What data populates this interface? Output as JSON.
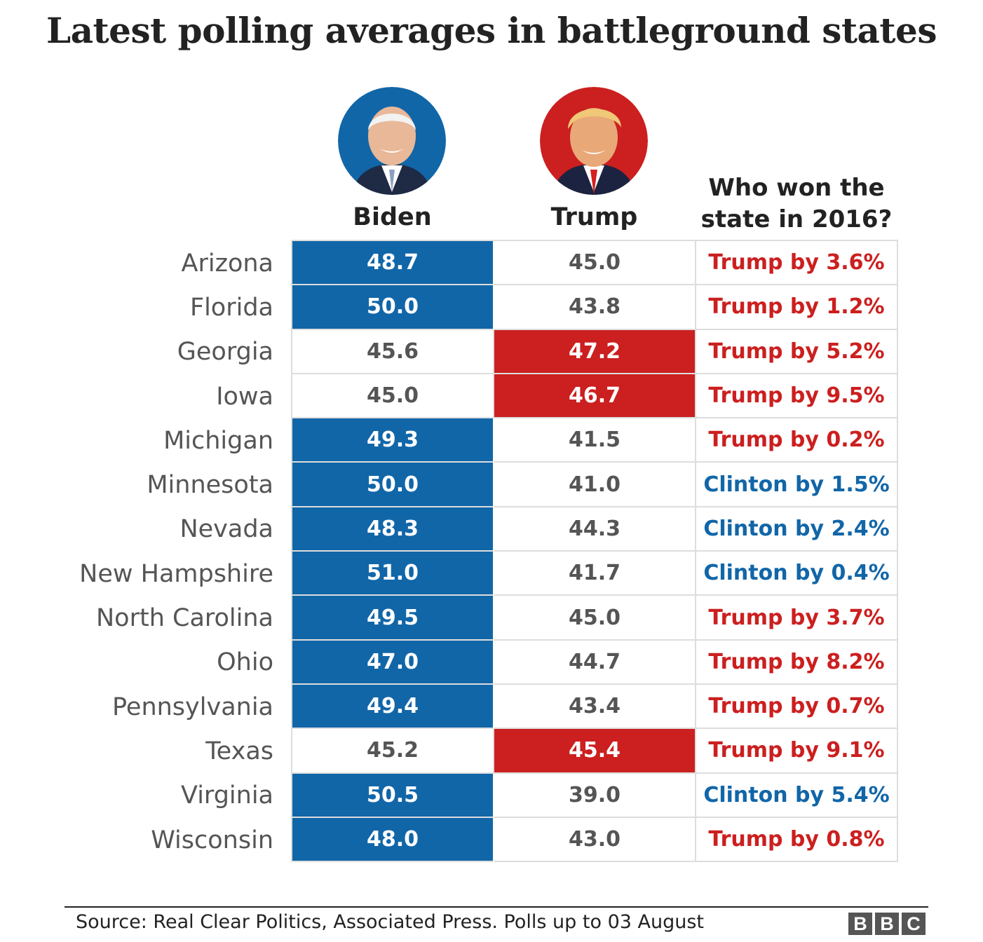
{
  "title": "Latest polling averages in battleground states",
  "columns": {
    "biden": "Biden",
    "trump": "Trump",
    "winner_line1": "Who won the",
    "winner_line2": "state in 2016?"
  },
  "colors": {
    "biden_blue": "#1166a8",
    "trump_red": "#cc1f1f",
    "grid": "#dddddd",
    "text_gray": "#555555"
  },
  "chart_data": {
    "type": "table",
    "title": "Latest polling averages in battleground states",
    "columns": [
      "Biden",
      "Trump",
      "Who won the state in 2016?"
    ],
    "rows": [
      {
        "state": "Arizona",
        "biden": "48.7",
        "trump": "45.0",
        "leader": "biden",
        "winner_2016": "Trump by 3.6%",
        "winner_party": "trump"
      },
      {
        "state": "Florida",
        "biden": "50.0",
        "trump": "43.8",
        "leader": "biden",
        "winner_2016": "Trump by 1.2%",
        "winner_party": "trump"
      },
      {
        "state": "Georgia",
        "biden": "45.6",
        "trump": "47.2",
        "leader": "trump",
        "winner_2016": "Trump by 5.2%",
        "winner_party": "trump"
      },
      {
        "state": "Iowa",
        "biden": "45.0",
        "trump": "46.7",
        "leader": "trump",
        "winner_2016": "Trump by 9.5%",
        "winner_party": "trump"
      },
      {
        "state": "Michigan",
        "biden": "49.3",
        "trump": "41.5",
        "leader": "biden",
        "winner_2016": "Trump by 0.2%",
        "winner_party": "trump"
      },
      {
        "state": "Minnesota",
        "biden": "50.0",
        "trump": "41.0",
        "leader": "biden",
        "winner_2016": "Clinton by 1.5%",
        "winner_party": "clinton"
      },
      {
        "state": "Nevada",
        "biden": "48.3",
        "trump": "44.3",
        "leader": "biden",
        "winner_2016": "Clinton by 2.4%",
        "winner_party": "clinton"
      },
      {
        "state": "New Hampshire",
        "biden": "51.0",
        "trump": "41.7",
        "leader": "biden",
        "winner_2016": "Clinton by 0.4%",
        "winner_party": "clinton"
      },
      {
        "state": "North Carolina",
        "biden": "49.5",
        "trump": "45.0",
        "leader": "biden",
        "winner_2016": "Trump by 3.7%",
        "winner_party": "trump"
      },
      {
        "state": "Ohio",
        "biden": "47.0",
        "trump": "44.7",
        "leader": "biden",
        "winner_2016": "Trump by 8.2%",
        "winner_party": "trump"
      },
      {
        "state": "Pennsylvania",
        "biden": "49.4",
        "trump": "43.4",
        "leader": "biden",
        "winner_2016": "Trump by 0.7%",
        "winner_party": "trump"
      },
      {
        "state": "Texas",
        "biden": "45.2",
        "trump": "45.4",
        "leader": "trump",
        "winner_2016": "Trump by 9.1%",
        "winner_party": "trump"
      },
      {
        "state": "Virginia",
        "biden": "50.5",
        "trump": "39.0",
        "leader": "biden",
        "winner_2016": "Clinton by 5.4%",
        "winner_party": "clinton"
      },
      {
        "state": "Wisconsin",
        "biden": "48.0",
        "trump": "43.0",
        "leader": "biden",
        "winner_2016": "Trump by 0.8%",
        "winner_party": "trump"
      }
    ]
  },
  "footer": {
    "source": "Source: Real Clear Politics, Associated Press. Polls up to 03 August",
    "logo_letters": [
      "B",
      "B",
      "C"
    ]
  }
}
